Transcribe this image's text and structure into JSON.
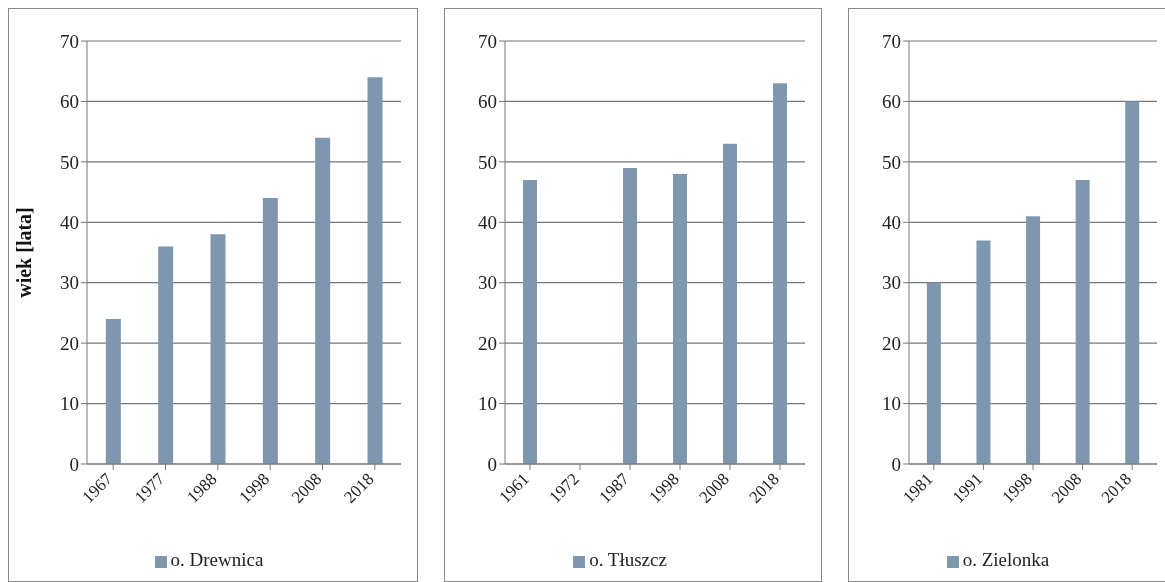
{
  "chart_data": [
    {
      "type": "bar",
      "ylabel": "wiek [lata]",
      "categories": [
        "1967",
        "1977",
        "1988",
        "1998",
        "2008",
        "2018"
      ],
      "series": [
        {
          "name": "o. Drewnica",
          "color": "#7f97ae",
          "values": [
            24,
            36,
            38,
            44,
            54,
            64
          ]
        }
      ],
      "ylim": [
        0,
        70
      ],
      "yticks": [
        0,
        10,
        20,
        30,
        40,
        50,
        60,
        70
      ],
      "grid": "y",
      "legend": "bottom"
    },
    {
      "type": "bar",
      "categories": [
        "1961",
        "1972",
        "1987",
        "1998",
        "2008",
        "2018"
      ],
      "series": [
        {
          "name": "o. Tłuszcz",
          "color": "#7f97ae",
          "values": [
            47,
            null,
            49,
            48,
            53,
            63
          ]
        }
      ],
      "ylim": [
        0,
        70
      ],
      "yticks": [
        0,
        10,
        20,
        30,
        40,
        50,
        60,
        70
      ],
      "grid": "y",
      "legend": "bottom"
    },
    {
      "type": "bar",
      "categories": [
        "1981",
        "1991",
        "1998",
        "2008",
        "2018"
      ],
      "series": [
        {
          "name": "o. Zielonka",
          "color": "#7f97ae",
          "values": [
            30,
            37,
            41,
            47,
            60
          ]
        }
      ],
      "ylim": [
        0,
        70
      ],
      "yticks": [
        0,
        10,
        20,
        30,
        40,
        50,
        60,
        70
      ],
      "grid": "y",
      "legend": "bottom"
    }
  ]
}
